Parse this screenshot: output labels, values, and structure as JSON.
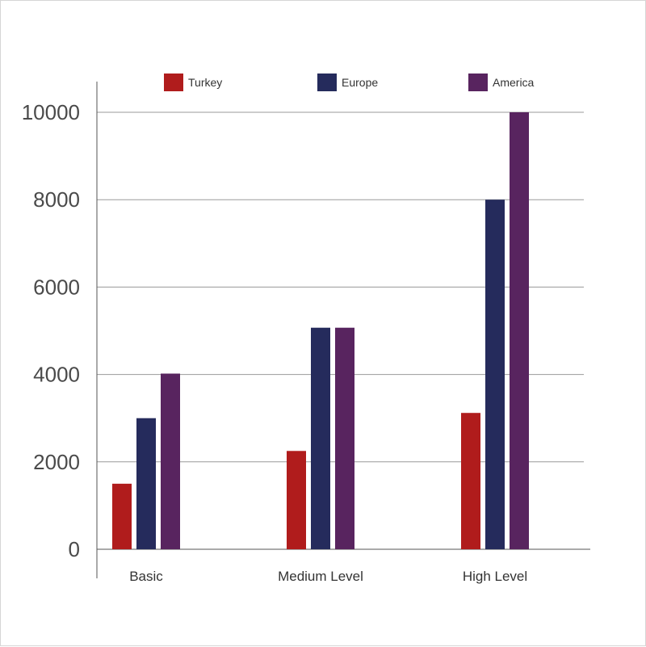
{
  "chart_data": {
    "type": "bar",
    "categories": [
      "Basic",
      "Medium Level",
      "High Level"
    ],
    "series": [
      {
        "name": "Turkey",
        "color": "#b01c1c",
        "values": [
          1500,
          2250,
          3120
        ]
      },
      {
        "name": "Europe",
        "color": "#252b5c",
        "values": [
          3000,
          5070,
          8000
        ]
      },
      {
        "name": "America",
        "color": "#58245f",
        "values": [
          4020,
          5070,
          10000
        ]
      }
    ],
    "ylim": [
      0,
      10000
    ],
    "yticks": [
      0,
      2000,
      4000,
      6000,
      8000,
      10000
    ],
    "grid": true,
    "legend": "top"
  }
}
